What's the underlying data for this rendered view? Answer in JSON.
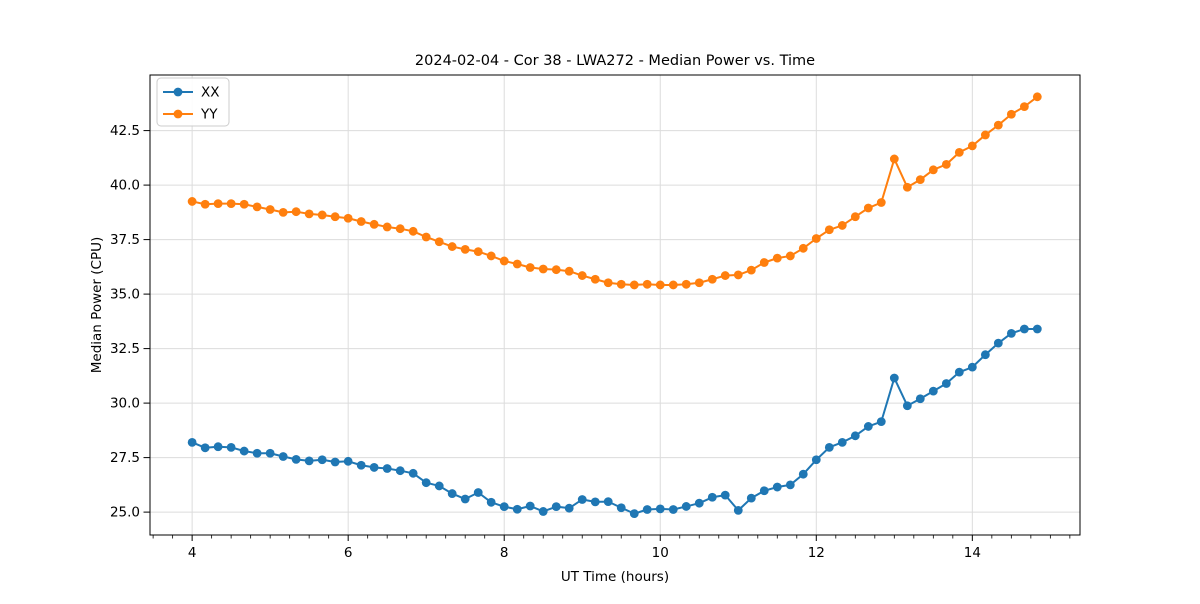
{
  "figure": {
    "background": "#ffffff",
    "grid_color": "#dcdcdc",
    "spine_color": "#000000",
    "legend_border_color": "#cccccc",
    "legend_background": "#ffffff"
  },
  "chart_data": {
    "type": "line",
    "title": "2024-02-04 - Cor 38 - LWA272 - Median Power vs. Time",
    "xlabel": "UT Time (hours)",
    "ylabel": "Median Power (CPU)",
    "xlim": [
      3.46,
      15.38
    ],
    "ylim": [
      23.95,
      45.05
    ],
    "grid": true,
    "legend_position": "upper-left",
    "x_ticks": [
      4,
      6,
      8,
      10,
      12,
      14
    ],
    "x_tick_labels": [
      "4",
      "6",
      "8",
      "10",
      "12",
      "14"
    ],
    "x_minor_tick_step": 0.25,
    "x_minor_range": [
      3.5,
      15.25
    ],
    "y_ticks": [
      25.0,
      27.5,
      30.0,
      32.5,
      35.0,
      37.5,
      40.0,
      42.5
    ],
    "y_tick_labels": [
      "25.0",
      "27.5",
      "30.0",
      "32.5",
      "35.0",
      "37.5",
      "40.0",
      "42.5"
    ],
    "x": [
      4.0,
      4.167,
      4.333,
      4.5,
      4.667,
      4.833,
      5.0,
      5.167,
      5.333,
      5.5,
      5.667,
      5.833,
      6.0,
      6.167,
      6.333,
      6.5,
      6.667,
      6.833,
      7.0,
      7.167,
      7.333,
      7.5,
      7.667,
      7.833,
      8.0,
      8.167,
      8.333,
      8.5,
      8.667,
      8.833,
      9.0,
      9.167,
      9.333,
      9.5,
      9.667,
      9.833,
      10.0,
      10.167,
      10.333,
      10.5,
      10.667,
      10.833,
      11.0,
      11.167,
      11.333,
      11.5,
      11.667,
      11.833,
      12.0,
      12.167,
      12.333,
      12.5,
      12.667,
      12.833,
      13.0,
      13.167,
      13.333,
      13.5,
      13.667,
      13.833,
      14.0,
      14.167,
      14.333,
      14.5,
      14.667,
      14.833
    ],
    "series": [
      {
        "name": "XX",
        "color": "#1f77b4",
        "values": [
          28.2,
          27.95,
          28.0,
          27.97,
          27.8,
          27.7,
          27.7,
          27.55,
          27.42,
          27.35,
          27.4,
          27.3,
          27.33,
          27.15,
          27.05,
          27.0,
          26.9,
          26.78,
          26.35,
          26.2,
          25.85,
          25.6,
          25.9,
          25.45,
          25.25,
          25.13,
          25.28,
          25.03,
          25.25,
          25.18,
          25.58,
          25.47,
          25.48,
          25.2,
          24.93,
          25.12,
          25.15,
          25.12,
          25.26,
          25.41,
          25.68,
          25.78,
          25.08,
          25.64,
          25.98,
          26.15,
          26.25,
          26.74,
          27.4,
          27.97,
          28.2,
          28.5,
          28.93,
          29.15,
          31.15,
          29.88,
          30.2,
          30.55,
          30.9,
          31.42,
          31.65,
          32.22,
          32.75,
          33.2,
          33.4,
          33.4
        ]
      },
      {
        "name": "YY",
        "color": "#ff7f0e",
        "values": [
          39.25,
          39.12,
          39.15,
          39.15,
          39.12,
          39.0,
          38.88,
          38.75,
          38.78,
          38.68,
          38.63,
          38.55,
          38.48,
          38.33,
          38.2,
          38.08,
          38.0,
          37.88,
          37.62,
          37.4,
          37.18,
          37.05,
          36.95,
          36.75,
          36.52,
          36.38,
          36.22,
          36.15,
          36.12,
          36.05,
          35.85,
          35.68,
          35.52,
          35.45,
          35.42,
          35.45,
          35.42,
          35.42,
          35.45,
          35.52,
          35.68,
          35.85,
          35.88,
          36.1,
          36.45,
          36.65,
          36.75,
          37.1,
          37.55,
          37.95,
          38.15,
          38.55,
          38.95,
          39.2,
          41.2,
          39.9,
          40.25,
          40.7,
          40.95,
          41.5,
          41.8,
          42.3,
          42.75,
          43.25,
          43.6,
          44.05
        ]
      }
    ]
  }
}
